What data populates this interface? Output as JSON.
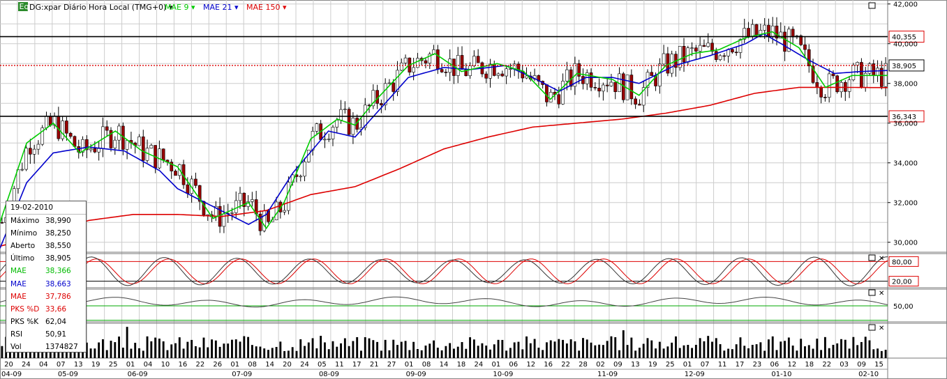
{
  "header": {
    "badge": "Eq",
    "instrument": "DG:xpar Diário Hora Local (TMG+0)",
    "ma_labels": [
      {
        "label": "MAE 9",
        "color": "#00cc00"
      },
      {
        "label": "MAE 21",
        "color": "#0000cc"
      },
      {
        "label": "MAE 150",
        "color": "#dd0000"
      }
    ]
  },
  "info_panel": {
    "date": "19-02-2010",
    "rows": [
      {
        "k": "Máximo",
        "v": "38,990",
        "color": "#000000"
      },
      {
        "k": "Mínimo",
        "v": "38,250",
        "color": "#000000"
      },
      {
        "k": "Aberto",
        "v": "38,550",
        "color": "#000000"
      },
      {
        "k": "Último",
        "v": "38,905",
        "color": "#000000"
      },
      {
        "k": "MAE",
        "v": "38,366",
        "color": "#00bb00"
      },
      {
        "k": "MAE",
        "v": "38,663",
        "color": "#0000cc"
      },
      {
        "k": "MAE",
        "v": "37,786",
        "color": "#dd0000"
      },
      {
        "k": "PKS %D",
        "v": "33,66",
        "color": "#dd0000"
      },
      {
        "k": "PKS %K",
        "v": "62,04",
        "color": "#000000"
      },
      {
        "k": "RSI",
        "v": "50,91",
        "color": "#000000"
      },
      {
        "k": "Vol",
        "v": "1374827",
        "color": "#000000"
      }
    ]
  },
  "chart_data": {
    "type": "candlestick",
    "price_axis": {
      "range": [
        29500,
        42200
      ],
      "ticks": [
        "42,000",
        "40,000",
        "38,000",
        "36,000",
        "34,000",
        "32,000",
        "30,000"
      ]
    },
    "horizontal_lines": [
      {
        "label": "40,355",
        "value": 40355,
        "color": "#000000",
        "style": "solid"
      },
      {
        "label": "38,905",
        "value": 38905,
        "color": "#dd0000",
        "style": "dotted"
      },
      {
        "label": "36,343",
        "value": 36343,
        "color": "#000000",
        "style": "solid"
      }
    ],
    "ma_anchors": {
      "mae9": [
        [
          0,
          31000
        ],
        [
          0.03,
          35000
        ],
        [
          0.06,
          36000
        ],
        [
          0.09,
          34500
        ],
        [
          0.13,
          35600
        ],
        [
          0.16,
          34600
        ],
        [
          0.2,
          33800
        ],
        [
          0.24,
          31200
        ],
        [
          0.28,
          32000
        ],
        [
          0.3,
          30700
        ],
        [
          0.32,
          32000
        ],
        [
          0.35,
          35200
        ],
        [
          0.38,
          36200
        ],
        [
          0.4,
          35900
        ],
        [
          0.42,
          37000
        ],
        [
          0.46,
          38900
        ],
        [
          0.49,
          39500
        ],
        [
          0.52,
          38600
        ],
        [
          0.56,
          39000
        ],
        [
          0.59,
          38600
        ],
        [
          0.62,
          37200
        ],
        [
          0.65,
          38500
        ],
        [
          0.69,
          38200
        ],
        [
          0.72,
          37400
        ],
        [
          0.75,
          38900
        ],
        [
          0.78,
          39500
        ],
        [
          0.81,
          39700
        ],
        [
          0.84,
          40300
        ],
        [
          0.87,
          40600
        ],
        [
          0.9,
          39800
        ],
        [
          0.93,
          37800
        ],
        [
          0.96,
          38400
        ],
        [
          1,
          38400
        ]
      ],
      "mae21": [
        [
          0,
          29700
        ],
        [
          0.03,
          33000
        ],
        [
          0.06,
          34500
        ],
        [
          0.1,
          34800
        ],
        [
          0.14,
          34600
        ],
        [
          0.18,
          33600
        ],
        [
          0.2,
          32700
        ],
        [
          0.24,
          31800
        ],
        [
          0.28,
          30900
        ],
        [
          0.3,
          31400
        ],
        [
          0.33,
          33500
        ],
        [
          0.37,
          35600
        ],
        [
          0.4,
          35300
        ],
        [
          0.43,
          36800
        ],
        [
          0.46,
          38300
        ],
        [
          0.5,
          38800
        ],
        [
          0.53,
          38700
        ],
        [
          0.57,
          38900
        ],
        [
          0.6,
          38300
        ],
        [
          0.63,
          37600
        ],
        [
          0.66,
          38300
        ],
        [
          0.69,
          38300
        ],
        [
          0.72,
          38000
        ],
        [
          0.76,
          38900
        ],
        [
          0.8,
          39400
        ],
        [
          0.84,
          40000
        ],
        [
          0.86,
          40500
        ],
        [
          0.88,
          40000
        ],
        [
          0.91,
          39200
        ],
        [
          0.94,
          38500
        ],
        [
          0.97,
          38600
        ],
        [
          1,
          38650
        ]
      ],
      "mae150": [
        [
          0,
          29800
        ],
        [
          0.05,
          30400
        ],
        [
          0.1,
          31100
        ],
        [
          0.15,
          31400
        ],
        [
          0.2,
          31400
        ],
        [
          0.25,
          31300
        ],
        [
          0.3,
          31600
        ],
        [
          0.35,
          32400
        ],
        [
          0.4,
          32800
        ],
        [
          0.45,
          33700
        ],
        [
          0.5,
          34700
        ],
        [
          0.55,
          35300
        ],
        [
          0.6,
          35800
        ],
        [
          0.65,
          36000
        ],
        [
          0.7,
          36200
        ],
        [
          0.75,
          36500
        ],
        [
          0.8,
          36900
        ],
        [
          0.85,
          37500
        ],
        [
          0.9,
          37800
        ],
        [
          0.95,
          37800
        ],
        [
          1,
          37786
        ]
      ]
    },
    "oscillator": {
      "name": "PKS",
      "levels": [
        {
          "label": "80,00",
          "value": 80
        },
        {
          "label": "20,00",
          "value": 20
        }
      ],
      "last_k": 62.04,
      "last_d": 33.66
    },
    "rsi": {
      "label": "50,00",
      "value": 50,
      "last": 50.91
    },
    "volume": {
      "last": 1374827
    },
    "x_day_labels": [
      "20",
      "24",
      "04",
      "07",
      "13",
      "19",
      "25",
      "01",
      "04",
      "10",
      "16",
      "22",
      "26",
      "01",
      "08",
      "14",
      "20",
      "24",
      "05",
      "11",
      "17",
      "21",
      "27",
      "01",
      "08",
      "14",
      "18",
      "24",
      "01",
      "06",
      "12",
      "16",
      "22",
      "28",
      "02",
      "09",
      "13",
      "19",
      "25",
      "01",
      "07",
      "11",
      "17",
      "23",
      "06",
      "12",
      "18",
      "22",
      "03",
      "09",
      "15"
    ],
    "x_month_labels": [
      "04-09",
      "05-09",
      "06-09",
      "07-09",
      "08-09",
      "09-09",
      "10-09",
      "11-09",
      "12-09",
      "01-10",
      "02-10"
    ],
    "colors": {
      "up": "#ffffff",
      "down": "#990000",
      "grid": "#cccccc",
      "mae9": "#00cc00",
      "mae21": "#0000cc",
      "mae150": "#dd0000"
    }
  }
}
